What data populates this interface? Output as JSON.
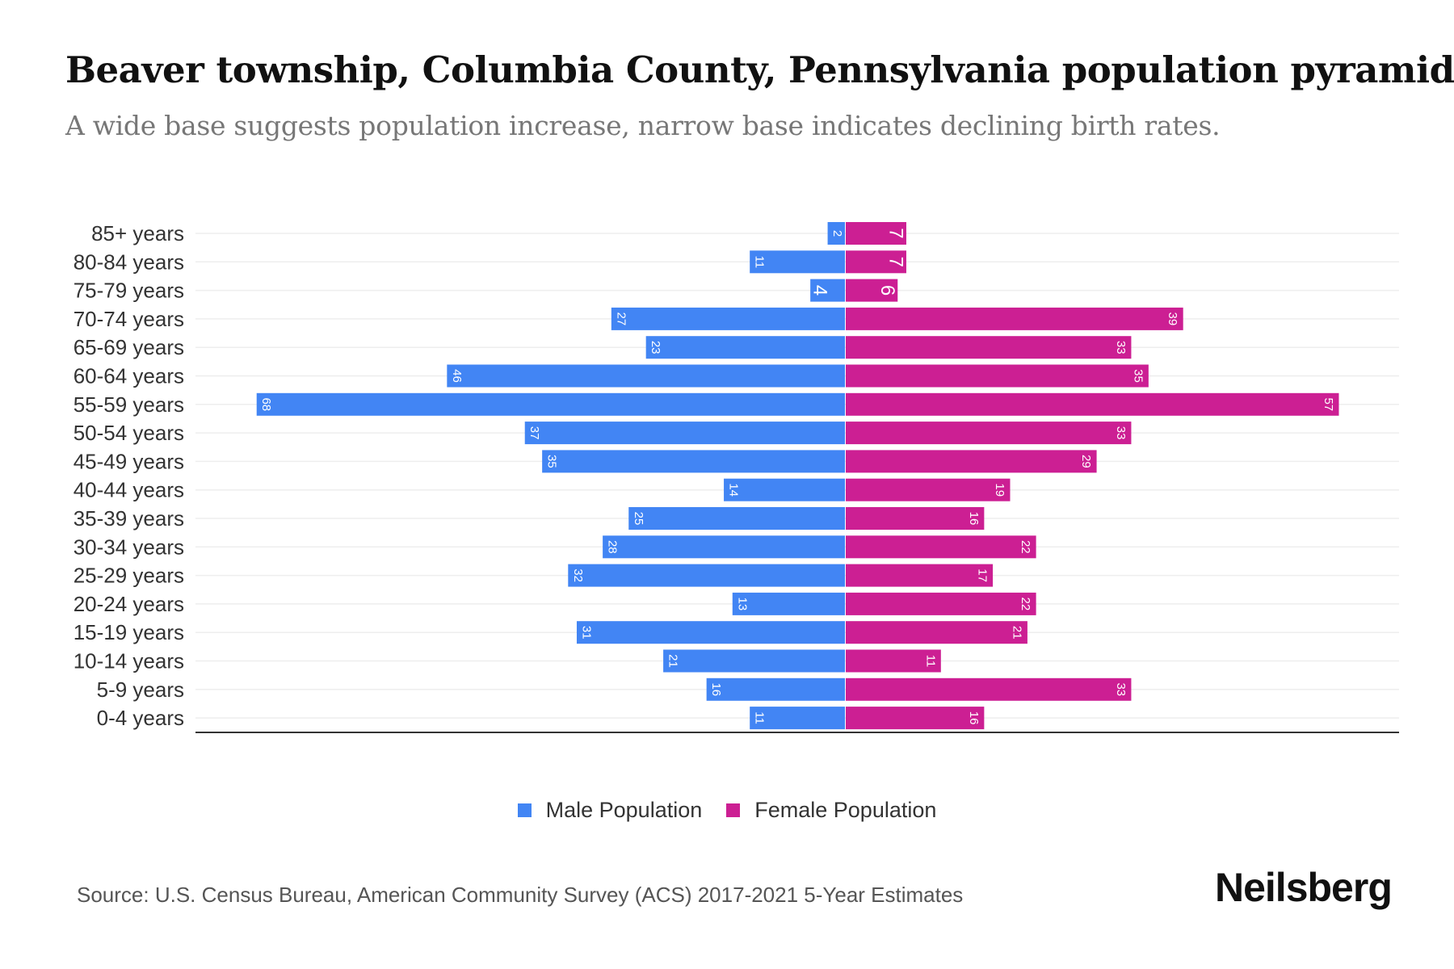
{
  "title": "Beaver township, Columbia County, Pennsylvania population pyramid",
  "subtitle": "A wide base suggests population increase, narrow base indicates declining birth rates.",
  "source": "Source: U.S. Census Bureau, American Community Survey (ACS) 2017-2021 5-Year Estimates",
  "logo": "Neilsberg",
  "colors": {
    "male": "#4285f4",
    "female": "#cc1f93"
  },
  "chart_data": {
    "type": "bar",
    "orientation": "horizontal-pyramid",
    "title": "Beaver township, Columbia County, Pennsylvania population pyramid",
    "categories": [
      "85+ years",
      "80-84 years",
      "75-79 years",
      "70-74 years",
      "65-69 years",
      "60-64 years",
      "55-59 years",
      "50-54 years",
      "45-49 years",
      "40-44 years",
      "35-39 years",
      "30-34 years",
      "25-29 years",
      "20-24 years",
      "15-19 years",
      "10-14 years",
      "5-9 years",
      "0-4 years"
    ],
    "series": [
      {
        "name": "Male Population",
        "values": [
          2,
          11,
          4,
          27,
          23,
          46,
          68,
          37,
          35,
          14,
          25,
          28,
          32,
          13,
          31,
          21,
          16,
          11
        ]
      },
      {
        "name": "Female Population",
        "values": [
          7,
          7,
          6,
          39,
          33,
          35,
          57,
          33,
          29,
          19,
          16,
          22,
          17,
          22,
          21,
          11,
          33,
          16
        ]
      }
    ],
    "xlim": [
      -75,
      64
    ],
    "grid": true,
    "legend": "bottom-center"
  }
}
